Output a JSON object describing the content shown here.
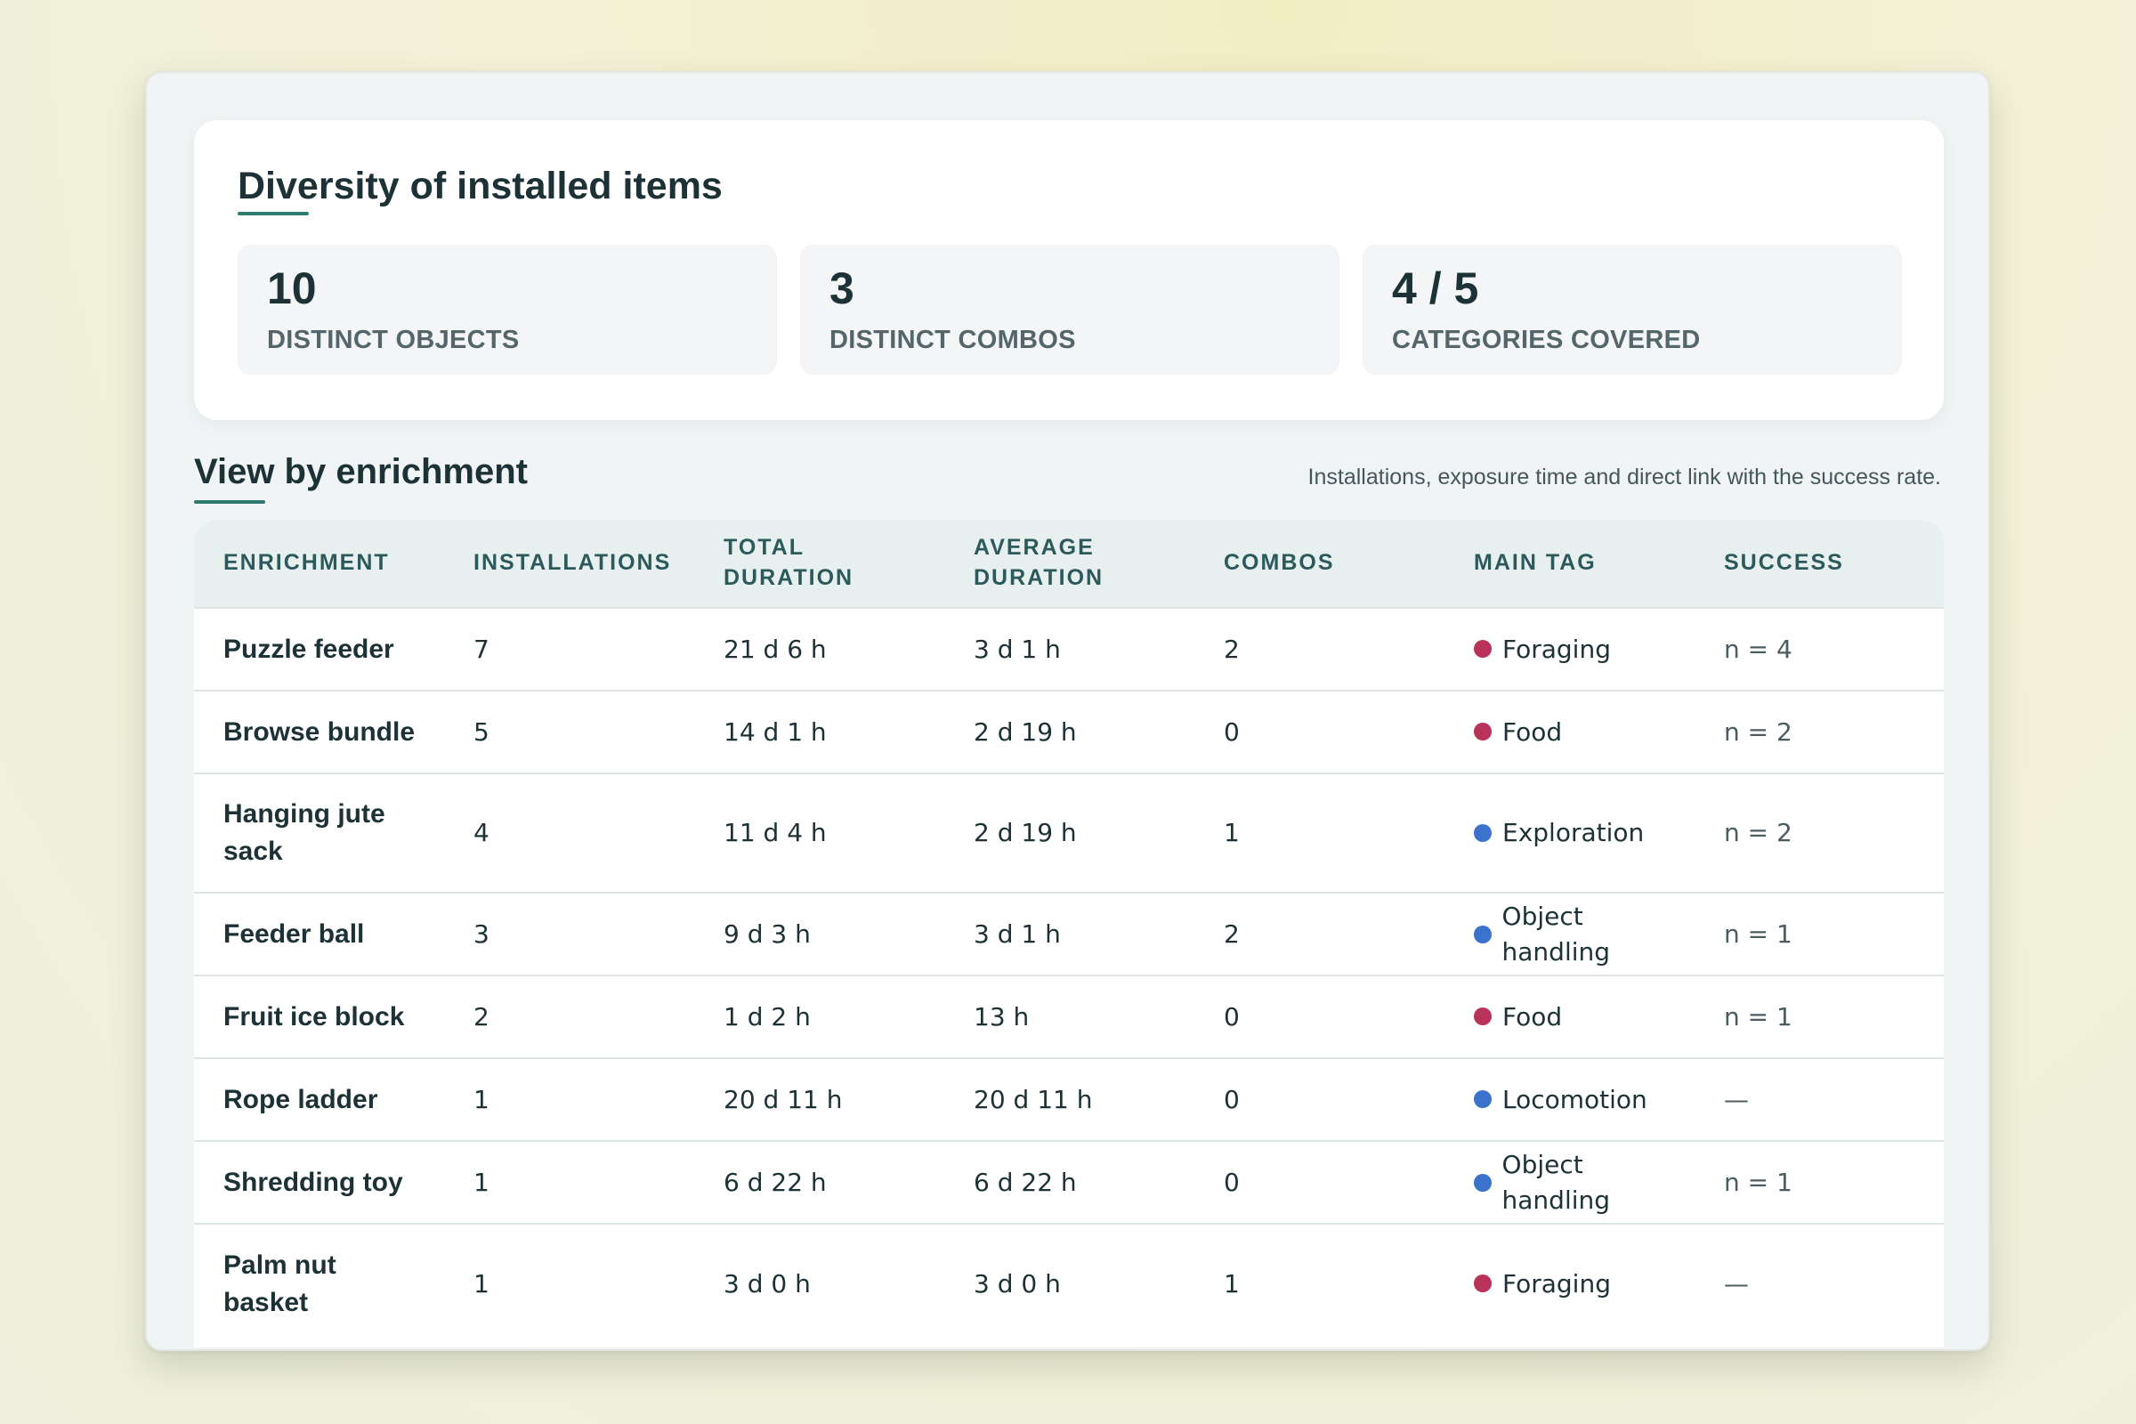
{
  "summary": {
    "title": "Diversity of installed items",
    "stats": [
      {
        "value": "10",
        "label": "DISTINCT OBJECTS"
      },
      {
        "value": "3",
        "label": "DISTINCT COMBOS"
      },
      {
        "value": "4 / 5",
        "label": "CATEGORIES COVERED"
      }
    ]
  },
  "enrichment": {
    "title": "View by enrichment",
    "subtitle": "Installations, exposure time and direct link with the success rate.",
    "columns": [
      "ENRICHMENT",
      "INSTALLATIONS",
      "TOTAL DURATION",
      "AVERAGE DURATION",
      "COMBOS",
      "MAIN TAG",
      "SUCCESS"
    ],
    "tag_colors": {
      "Foraging": "#b8325a",
      "Food": "#b8325a",
      "Exploration": "#3b72cc",
      "Object handling": "#3b72cc",
      "Locomotion": "#3b72cc"
    },
    "rows": [
      {
        "name": "Puzzle feeder",
        "installations": "7",
        "total": "21 d 6 h",
        "average": "3 d 1 h",
        "combos": "2",
        "tag": "Foraging",
        "success": "n = 4"
      },
      {
        "name": "Browse bundle",
        "installations": "5",
        "total": "14 d 1 h",
        "average": "2 d 19 h",
        "combos": "0",
        "tag": "Food",
        "success": "n = 2"
      },
      {
        "name": "Hanging jute sack",
        "installations": "4",
        "total": "11 d 4 h",
        "average": "2 d 19 h",
        "combos": "1",
        "tag": "Exploration",
        "success": "n = 2"
      },
      {
        "name": "Feeder ball",
        "installations": "3",
        "total": "9 d 3 h",
        "average": "3 d 1 h",
        "combos": "2",
        "tag": "Object handling",
        "success": "n = 1"
      },
      {
        "name": "Fruit ice block",
        "installations": "2",
        "total": "1 d 2 h",
        "average": "13 h",
        "combos": "0",
        "tag": "Food",
        "success": "n = 1"
      },
      {
        "name": "Rope ladder",
        "installations": "1",
        "total": "20 d 11 h",
        "average": "20 d 11 h",
        "combos": "0",
        "tag": "Locomotion",
        "success": "—"
      },
      {
        "name": "Shredding toy",
        "installations": "1",
        "total": "6 d 22 h",
        "average": "6 d 22 h",
        "combos": "0",
        "tag": "Object handling",
        "success": "n = 1"
      },
      {
        "name": "Palm nut basket",
        "installations": "1",
        "total": "3 d 0 h",
        "average": "3 d 0 h",
        "combos": "1",
        "tag": "Foraging",
        "success": "—"
      }
    ]
  }
}
